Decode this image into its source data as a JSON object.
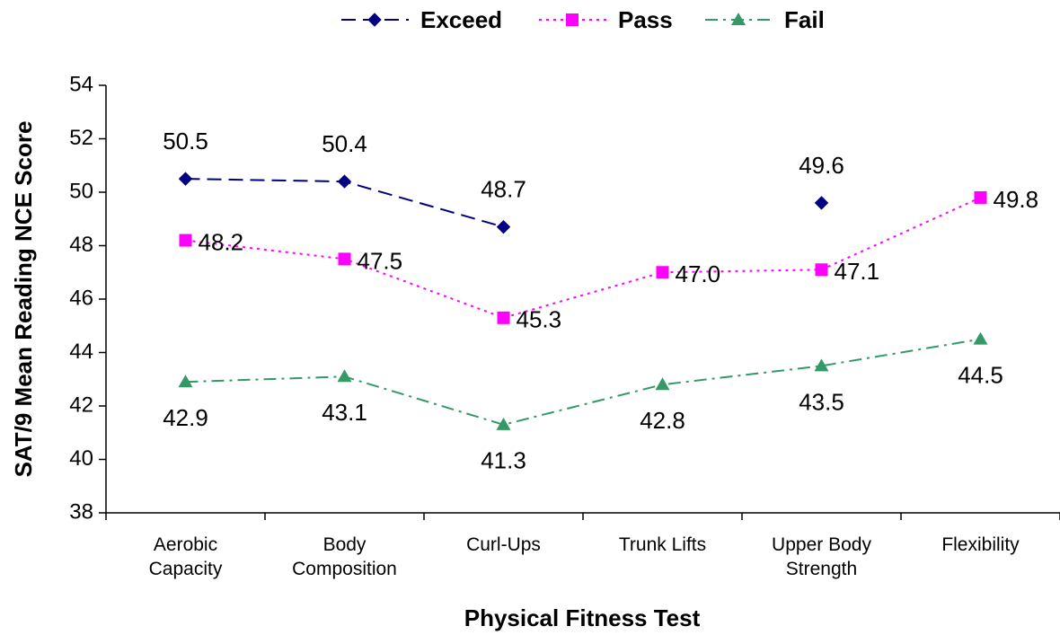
{
  "chart_data": {
    "type": "line",
    "xlabel": "Physical Fitness Test",
    "ylabel": "SAT/9  Mean Reading NCE Score",
    "categories": [
      "Aerobic Capacity",
      "Body Composition",
      "Curl-Ups",
      "Trunk Lifts",
      "Upper Body Strength",
      "Flexibility"
    ],
    "series": [
      {
        "name": "Exceed",
        "color": "#000080",
        "marker": "diamond",
        "dash": "16 8",
        "values": [
          50.5,
          50.4,
          48.7,
          null,
          49.6,
          null
        ],
        "value_labels": [
          "50.5",
          "50.4",
          "48.7",
          null,
          "49.6",
          null
        ]
      },
      {
        "name": "Pass",
        "color": "#ff00ff",
        "marker": "square",
        "dash": "3 5",
        "values": [
          48.2,
          47.5,
          45.3,
          47.0,
          47.1,
          49.8
        ],
        "value_labels": [
          "48.2",
          "47.5",
          "45.3",
          "47.0",
          "47.1",
          "49.8"
        ]
      },
      {
        "name": "Fail",
        "color": "#339966",
        "marker": "triangle",
        "dash": "14 6 3 6",
        "values": [
          42.9,
          43.1,
          41.3,
          42.8,
          43.5,
          44.5
        ],
        "value_labels": [
          "42.9",
          "43.1",
          "41.3",
          "42.8",
          "43.5",
          "44.5"
        ]
      }
    ],
    "ylim": [
      38,
      54
    ],
    "yticks": [
      38,
      40,
      42,
      44,
      46,
      48,
      50,
      52,
      54
    ],
    "grid": false,
    "legend": "top"
  }
}
